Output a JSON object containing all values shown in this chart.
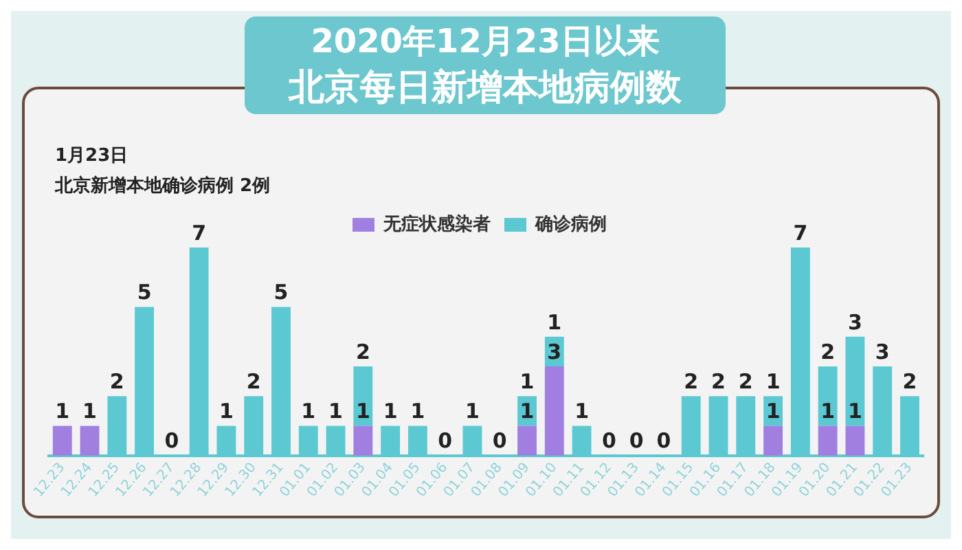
{
  "chart_data": {
    "type": "bar",
    "title": "2020年12月23日以来",
    "subtitle": "北京每日新增本地病例数",
    "annotations": [
      "1月23日",
      "北京新增本地确诊病例 2例"
    ],
    "categories": [
      "12.23",
      "12.24",
      "12.25",
      "12.26",
      "12.27",
      "12.28",
      "12.29",
      "12.30",
      "12.31",
      "01.01",
      "01.02",
      "01.03",
      "01.04",
      "01.05",
      "01.06",
      "01.07",
      "01.08",
      "01.09",
      "01.10",
      "01.11",
      "01.12",
      "01.13",
      "01.14",
      "01.15",
      "01.16",
      "01.17",
      "01.18",
      "01.19",
      "01.20",
      "01.21",
      "01.22",
      "01.23"
    ],
    "stacked": true,
    "legend": "top",
    "tick_labels": "x",
    "grid": false,
    "series": [
      {
        "name": "无症状感染者",
        "color": "#a07fe0",
        "values": [
          1,
          1,
          0,
          0,
          0,
          0,
          0,
          0,
          0,
          0,
          0,
          1,
          0,
          0,
          0,
          0,
          0,
          1,
          3,
          0,
          0,
          0,
          0,
          0,
          0,
          0,
          1,
          0,
          1,
          1,
          0,
          0
        ],
        "value_labels": [
          "1",
          "1",
          null,
          null,
          null,
          null,
          null,
          null,
          null,
          null,
          null,
          "1",
          null,
          null,
          null,
          null,
          null,
          "1",
          "3",
          null,
          null,
          null,
          null,
          null,
          null,
          null,
          "1",
          null,
          "1",
          "1",
          null,
          null
        ]
      },
      {
        "name": "确诊病例",
        "color": "#5bc8d2",
        "values": [
          0,
          0,
          2,
          5,
          0,
          7,
          1,
          2,
          5,
          1,
          1,
          2,
          1,
          1,
          0,
          1,
          0,
          1,
          1,
          1,
          0,
          0,
          0,
          2,
          2,
          2,
          1,
          7,
          2,
          3,
          3,
          2
        ],
        "value_labels": [
          null,
          null,
          "2",
          "5",
          "0",
          "7",
          "1",
          "2",
          "5",
          "1",
          "1",
          "2",
          "1",
          "1",
          "0",
          "1",
          "0",
          "1",
          "1",
          "1",
          "0",
          "0",
          "0",
          "2",
          "2",
          "2",
          "1",
          "7",
          "2",
          "3",
          "3",
          "2"
        ]
      }
    ]
  }
}
